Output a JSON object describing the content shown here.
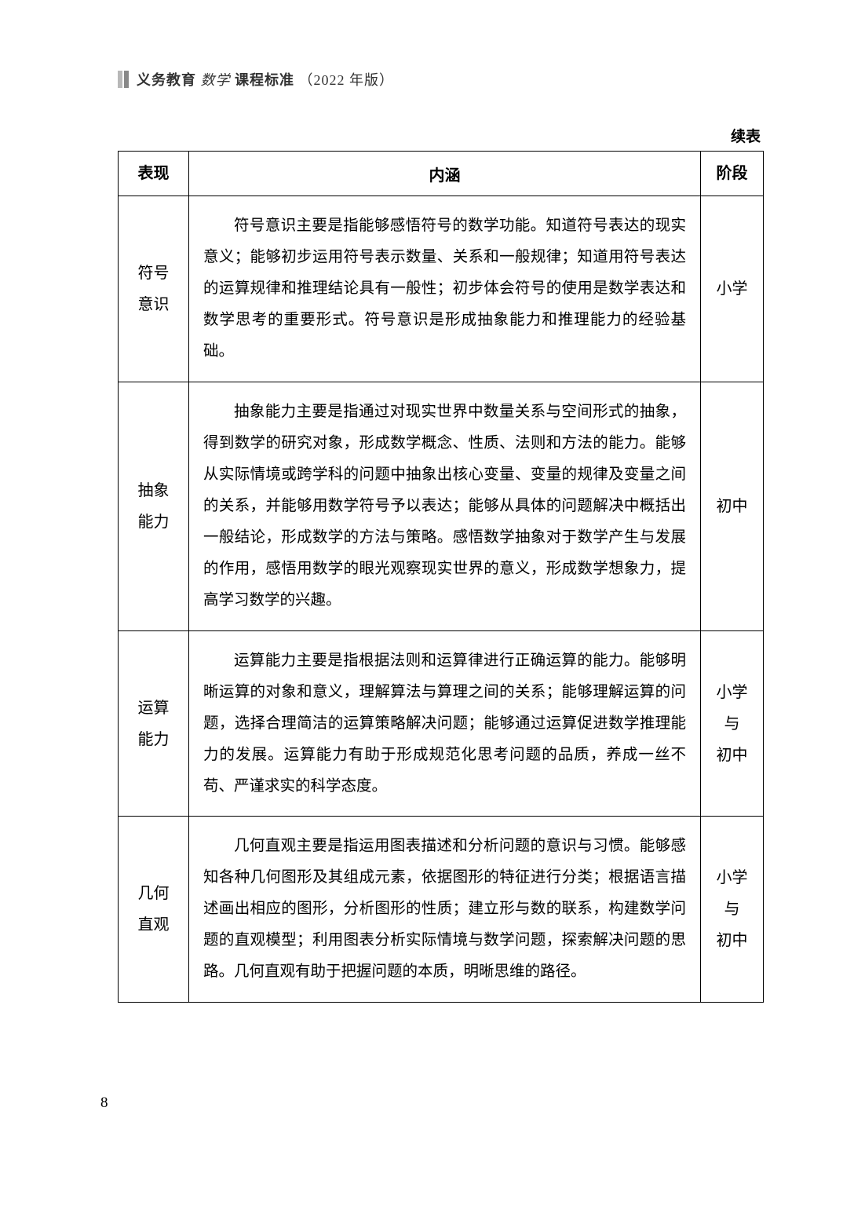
{
  "header": {
    "part1": "义务教育",
    "part2": "数学",
    "part3": "课程标准",
    "part4": "（2022 年版）"
  },
  "continue_label": "续表",
  "columns": [
    "表现",
    "内涵",
    "阶段"
  ],
  "rows": [
    {
      "term": "符号<br>意识",
      "content": "符号意识主要是指能够感悟符号的数学功能。知道符号表达的现实意义；能够初步运用符号表示数量、关系和一般规律；知道用符号表达的运算规律和推理结论具有一般性；初步体会符号的使用是数学表达和数学思考的重要形式。符号意识是形成抽象能力和推理能力的经验基础。",
      "stage": "小学"
    },
    {
      "term": "抽象<br>能力",
      "content": "抽象能力主要是指通过对现实世界中数量关系与空间形式的抽象，得到数学的研究对象，形成数学概念、性质、法则和方法的能力。能够从实际情境或跨学科的问题中抽象出核心变量、变量的规律及变量之间的关系，并能够用数学符号予以表达；能够从具体的问题解决中概括出一般结论，形成数学的方法与策略。感悟数学抽象对于数学产生与发展的作用，感悟用数学的眼光观察现实世界的意义，形成数学想象力，提高学习数学的兴趣。",
      "stage": "初中"
    },
    {
      "term": "运算<br>能力",
      "content": "运算能力主要是指根据法则和运算律进行正确运算的能力。能够明晰运算的对象和意义，理解算法与算理之间的关系；能够理解运算的问题，选择合理简洁的运算策略解决问题；能够通过运算促进数学推理能力的发展。运算能力有助于形成规范化思考问题的品质，养成一丝不苟、严谨求实的科学态度。",
      "stage": "小学<br>与<br>初中"
    },
    {
      "term": "几何<br>直观",
      "content": "几何直观主要是指运用图表描述和分析问题的意识与习惯。能够感知各种几何图形及其组成元素，依据图形的特征进行分类；根据语言描述画出相应的图形，分析图形的性质；建立形与数的联系，构建数学问题的直观模型；利用图表分析实际情境与数学问题，探索解决问题的思路。几何直观有助于把握问题的本质，明晰思维的路径。",
      "stage": "小学<br>与<br>初中"
    }
  ],
  "page_number": "8"
}
